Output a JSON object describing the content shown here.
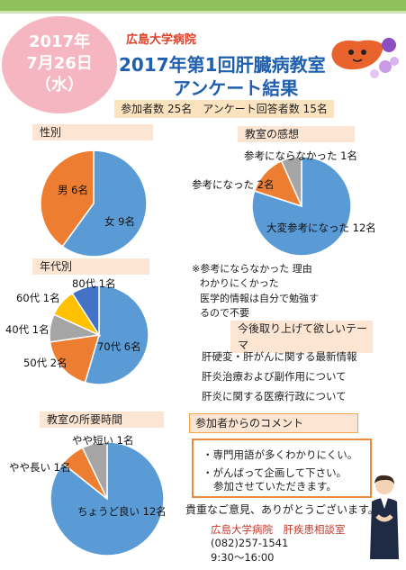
{
  "header": {
    "date_year": "2017年",
    "date_md": "7月26日",
    "date_dow": "（水）",
    "hospital": "広島大学病院",
    "title_line1": "2017年第1回肝臓病教室",
    "title_line2": "アンケート結果"
  },
  "participants": "参加者数 25名　アンケート回答者数 15名",
  "colors": {
    "blue": "#5b9bd5",
    "orange": "#ed7d31",
    "gray": "#a5a5a5",
    "yellow": "#ffc000",
    "navy": "#4472c4"
  },
  "sections": {
    "gender": "性別",
    "impression": "教室の感想",
    "age": "年代別",
    "duration": "教室の所要時間"
  },
  "chart_data": [
    {
      "type": "pie",
      "title": "性別",
      "labels": [
        "女 9名",
        "男 6名"
      ],
      "categories": [
        "女",
        "男"
      ],
      "values": [
        9,
        6
      ]
    },
    {
      "type": "pie",
      "title": "教室の感想",
      "labels": [
        "大変参考になった 12名",
        "参考になった 2名",
        "参考にならなかった 1名"
      ],
      "categories": [
        "大変参考になった",
        "参考になった",
        "参考にならなかった"
      ],
      "values": [
        12,
        2,
        1
      ]
    },
    {
      "type": "pie",
      "title": "年代別",
      "labels": [
        "70代 6名",
        "50代 2名",
        "40代 1名",
        "60代 1名",
        "80代 1名"
      ],
      "categories": [
        "70代",
        "50代",
        "40代",
        "60代",
        "80代"
      ],
      "values": [
        6,
        2,
        1,
        1,
        1
      ]
    },
    {
      "type": "pie",
      "title": "教室の所要時間",
      "labels": [
        "ちょうど良い 12名",
        "やや長い 1名",
        "やや短い 1名"
      ],
      "categories": [
        "ちょうど良い",
        "やや長い",
        "やや短い"
      ],
      "values": [
        12,
        1,
        1
      ]
    }
  ],
  "note": {
    "line1": "※参考にならなかった 理由",
    "line2": "わかりにくかった",
    "line3": "医学的情報は自分で勉強す",
    "line4": "るので不要"
  },
  "topics": {
    "head": "今後取り上げて欲しいテーマ",
    "items": [
      "肝硬変・肝がんに関する最新情報",
      "肝炎治療および副作用について",
      "肝炎に関する医療行政について"
    ]
  },
  "comments": {
    "head": "参加者からのコメント",
    "c1": "・専門用語が多くわかりにくい。",
    "c2": "・がんばって企画して下さい。",
    "c3": "参加させていただきます。"
  },
  "thanks": "貴重なご意見、ありがとうございます。",
  "contact": {
    "name": "広島大学病院　肝疾患相談室",
    "phone": "(082)257-1541",
    "hours": "9:30～16:00"
  },
  "icons": {
    "liver": "liver-mascot-icon",
    "person": "receptionist-icon"
  }
}
